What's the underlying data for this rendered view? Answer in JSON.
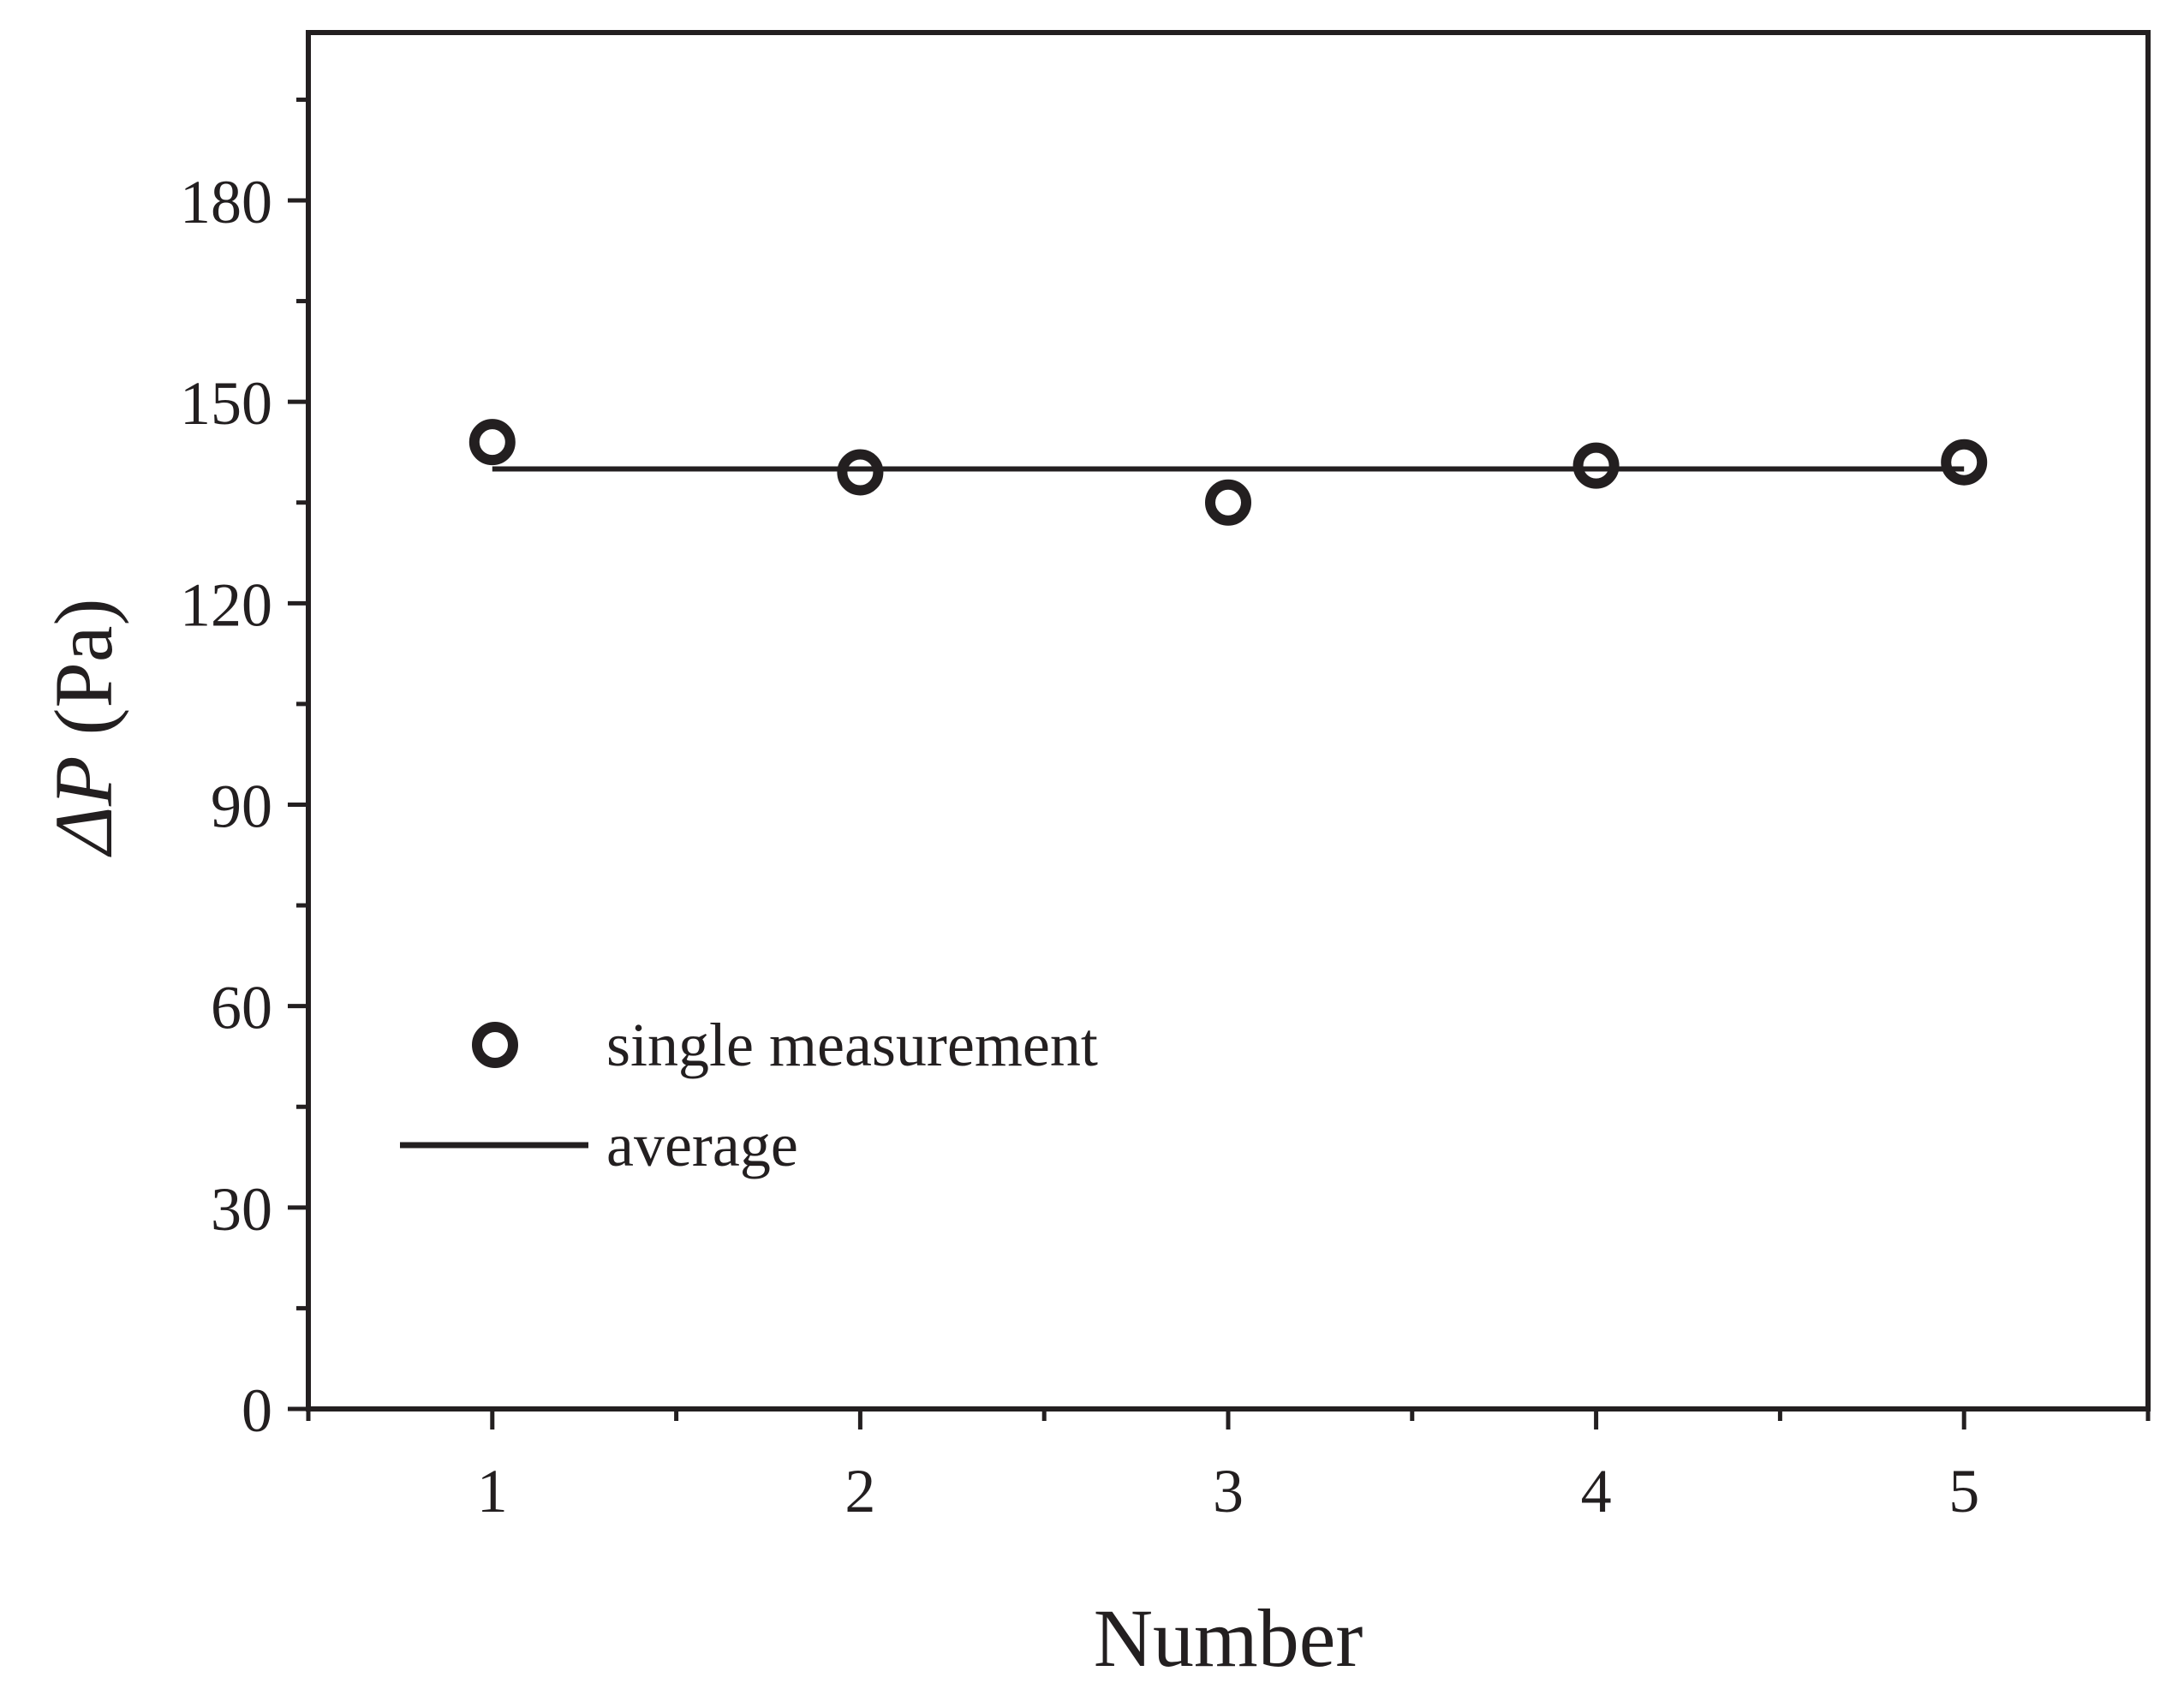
{
  "chart_data": {
    "type": "scatter",
    "xlabel": "Number",
    "ylabel_symbol": "ΔP",
    "ylabel_unit": " (Pa)",
    "xlim": [
      0.5,
      5.5
    ],
    "ylim": [
      0,
      205
    ],
    "x_ticks": [
      1,
      2,
      3,
      4,
      5
    ],
    "x_tick_labels": [
      "1",
      "2",
      "3",
      "4",
      "5"
    ],
    "x_minor_ticks": [
      0.5,
      1.5,
      2.5,
      3.5,
      4.5,
      5.5
    ],
    "y_ticks": [
      0,
      30,
      60,
      90,
      120,
      150,
      180
    ],
    "y_tick_labels": [
      "0",
      "30",
      "60",
      "90",
      "120",
      "150",
      "180"
    ],
    "y_minor_ticks": [
      15,
      45,
      75,
      105,
      135,
      165,
      195
    ],
    "grid": false,
    "legend_position": "bottom-left",
    "series": [
      {
        "name": "single measurement",
        "kind": "scatter",
        "marker": "open-circle",
        "x": [
          1,
          2,
          3,
          4,
          5
        ],
        "y": [
          144,
          139.5,
          135,
          140.5,
          141
        ]
      },
      {
        "name": "average",
        "kind": "line",
        "x": [
          1,
          5
        ],
        "y": [
          140,
          140
        ]
      }
    ],
    "colors": {
      "ink": "#231f20",
      "background": "#ffffff"
    }
  }
}
